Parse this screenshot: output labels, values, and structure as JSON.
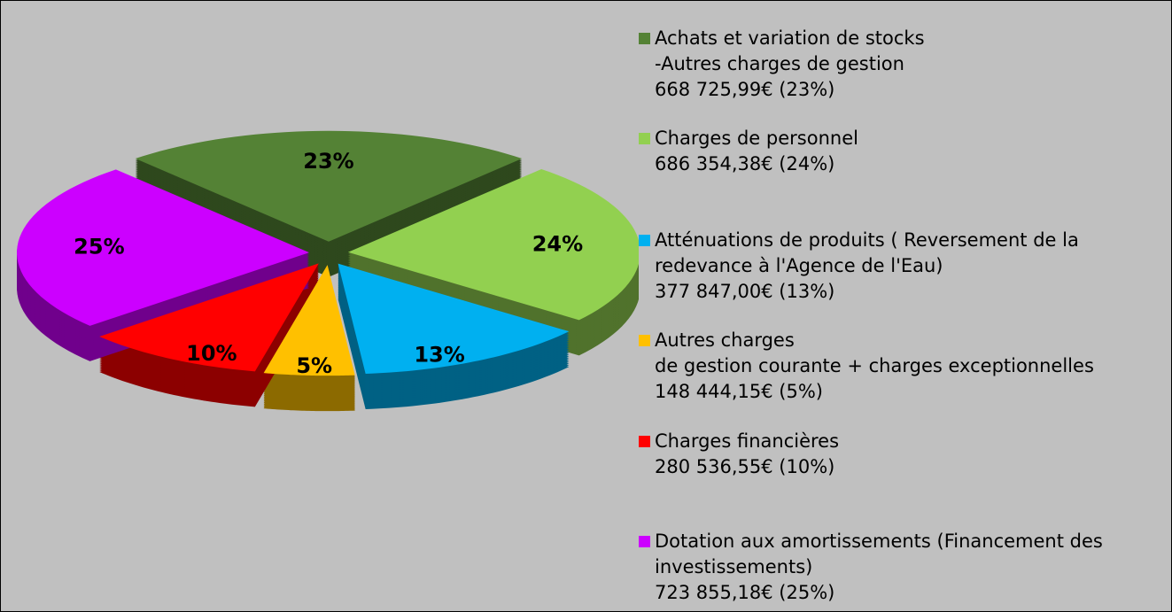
{
  "chart_data": {
    "type": "pie",
    "categories": [
      "Achats et variation de stocks\n-Autres charges de gestion",
      "Charges de personnel",
      "Atténuations de produits ( Reversement  de la\nredevance à l'Agence de l'Eau)",
      "Autres charges\nde gestion courante + charges exceptionnelles",
      "Charges financières",
      "Dotation aux amortissements (Financement des\ninvestissements)"
    ],
    "amounts": [
      "668 725,99€ (23%)",
      "686 354,38€ (24%)",
      "377 847,00€ (13%)",
      "148 444,15€ (5%)",
      "280 536,55€ (10%)",
      "723 855,18€ (25%)"
    ],
    "values": [
      23,
      24,
      13,
      5,
      10,
      25
    ],
    "value_labels": [
      "23%",
      "24%",
      "13%",
      "5%",
      "10%",
      "25%"
    ],
    "colors": [
      "#548235",
      "#92d050",
      "#00b0f0",
      "#ffc000",
      "#ff0000",
      "#cc00ff"
    ],
    "legend": "right"
  }
}
